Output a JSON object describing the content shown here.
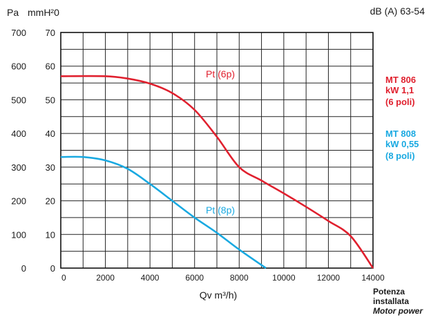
{
  "header": {
    "pa_unit": "Pa",
    "mmh2o_unit": "mmH²0",
    "noise": "dB (A) 63-54"
  },
  "xaxis_label": "Qv m³/h)",
  "motor_power": {
    "line1": "Potenza",
    "line2": "installata",
    "line3": "Motor power"
  },
  "models": [
    {
      "name": "MT 806",
      "power": "kW 1,1",
      "poles": "(6 poli)",
      "color": "#e0202e"
    },
    {
      "name": "MT 808",
      "power": "kW 0,55",
      "poles": "(8 poli)",
      "color": "#19a9e1"
    }
  ],
  "chart_data": {
    "type": "line",
    "title": "",
    "xlabel": "Qv m³/h)",
    "ylabel": "Pa",
    "ylabel_secondary": "mmH²0",
    "xlim": [
      0,
      14000
    ],
    "ylim": [
      0,
      700
    ],
    "ylim_secondary": [
      0,
      70
    ],
    "grid": true,
    "x_ticks": [
      "0",
      "2000",
      "4000",
      "6000",
      "8000",
      "10000",
      "12000",
      "14000"
    ],
    "y_ticks": [
      "0",
      "100",
      "200",
      "300",
      "400",
      "500",
      "600",
      "700"
    ],
    "y_ticks_secondary": [
      "0",
      "10",
      "20",
      "30",
      "40",
      "50",
      "60",
      "70"
    ],
    "series": [
      {
        "name": "Pt (6p)",
        "color": "#e0202e",
        "x": [
          0,
          2000,
          3000,
          4000,
          5000,
          6000,
          7000,
          8000,
          9000,
          10000,
          11000,
          12000,
          13000,
          14000
        ],
        "y": [
          570,
          570,
          563,
          548,
          520,
          470,
          390,
          300,
          260,
          222,
          182,
          140,
          95,
          0
        ]
      },
      {
        "name": "Pt (8p)",
        "color": "#19a9e1",
        "x": [
          0,
          1000,
          2000,
          3000,
          4000,
          5000,
          6000,
          7000,
          8000,
          9200
        ],
        "y": [
          330,
          330,
          320,
          295,
          250,
          200,
          150,
          105,
          55,
          0
        ]
      }
    ]
  }
}
